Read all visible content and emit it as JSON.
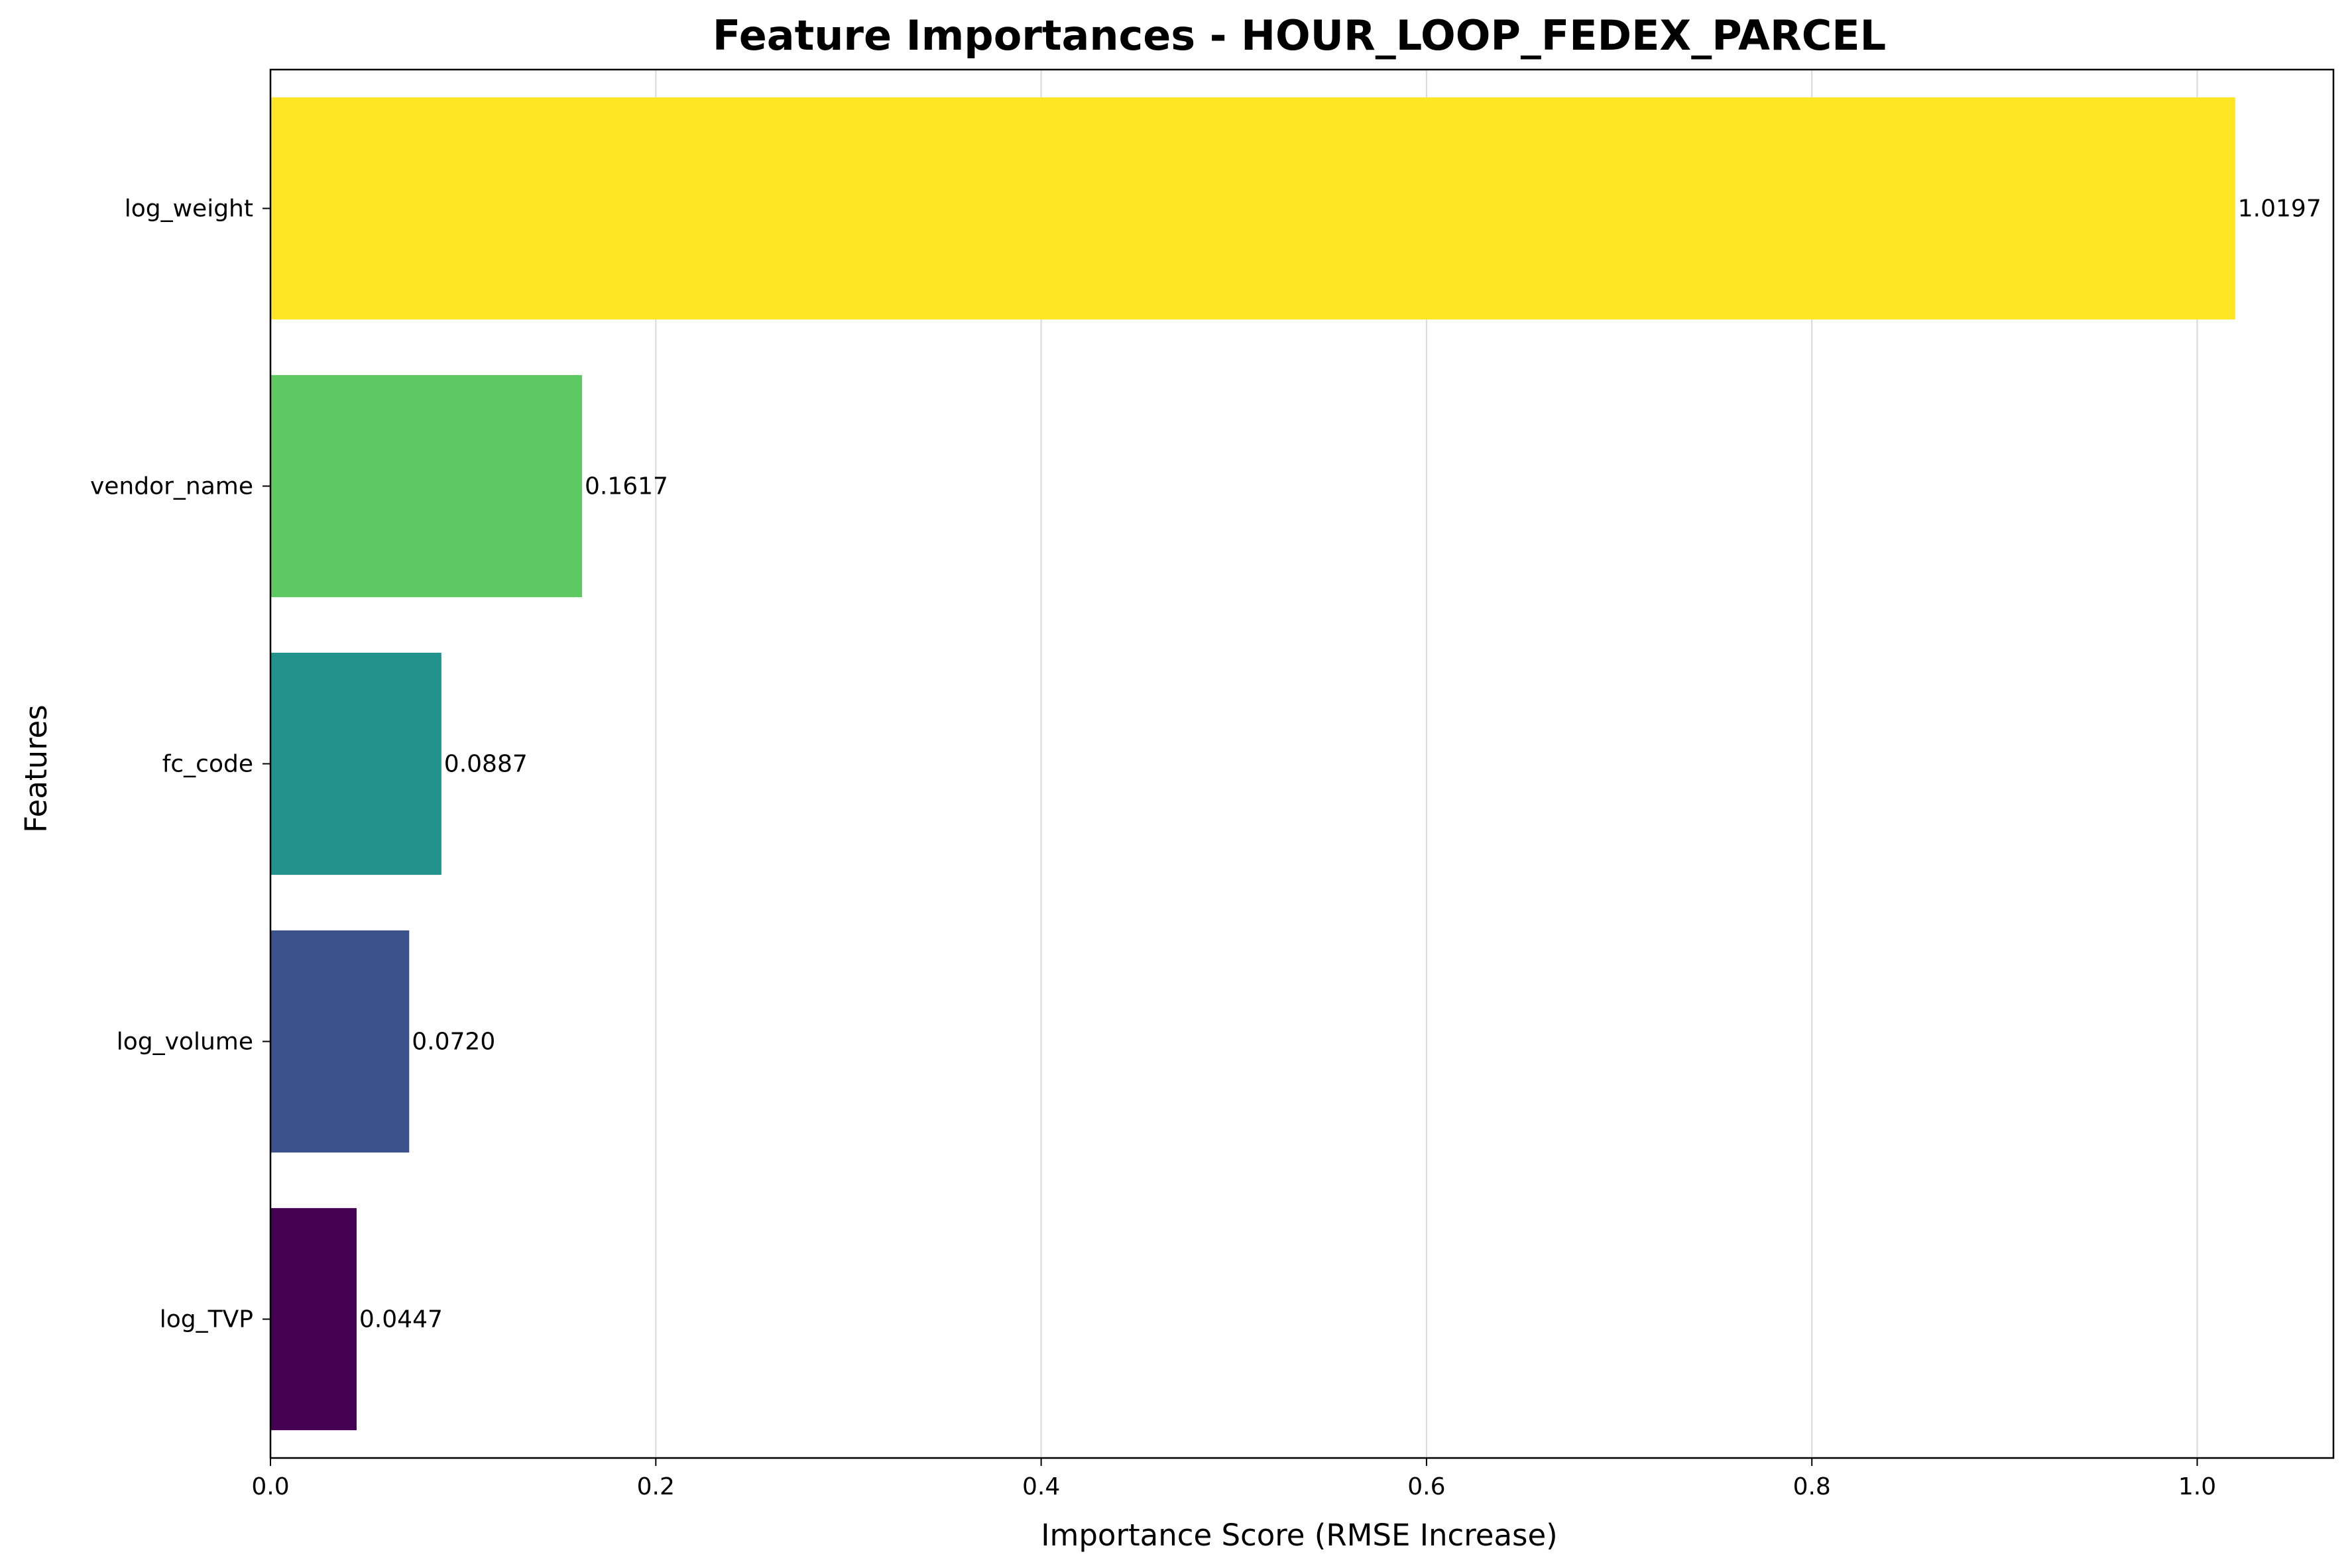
{
  "chart_data": {
    "type": "bar",
    "orientation": "horizontal",
    "title": "Feature Importances - HOUR_LOOP_FEDEX_PARCEL",
    "xlabel": "Importance Score (RMSE Increase)",
    "ylabel": "Features",
    "categories": [
      "log_weight",
      "vendor_name",
      "fc_code",
      "log_volume",
      "log_TVP"
    ],
    "values": [
      1.0197,
      0.1617,
      0.0887,
      0.072,
      0.0447
    ],
    "value_labels": [
      "1.0197",
      "0.1617",
      "0.0887",
      "0.0720",
      "0.0447"
    ],
    "colors": [
      "#fde725",
      "#5ec962",
      "#21918c",
      "#3b528b",
      "#440154"
    ],
    "xlim": [
      0,
      1.0707
    ],
    "xticks": [
      0.0,
      0.2,
      0.4,
      0.6,
      0.8,
      1.0
    ],
    "xtick_labels": [
      "0.0",
      "0.2",
      "0.4",
      "0.6",
      "0.8",
      "1.0"
    ],
    "grid": "x-axis, light gray",
    "legend": "none"
  }
}
